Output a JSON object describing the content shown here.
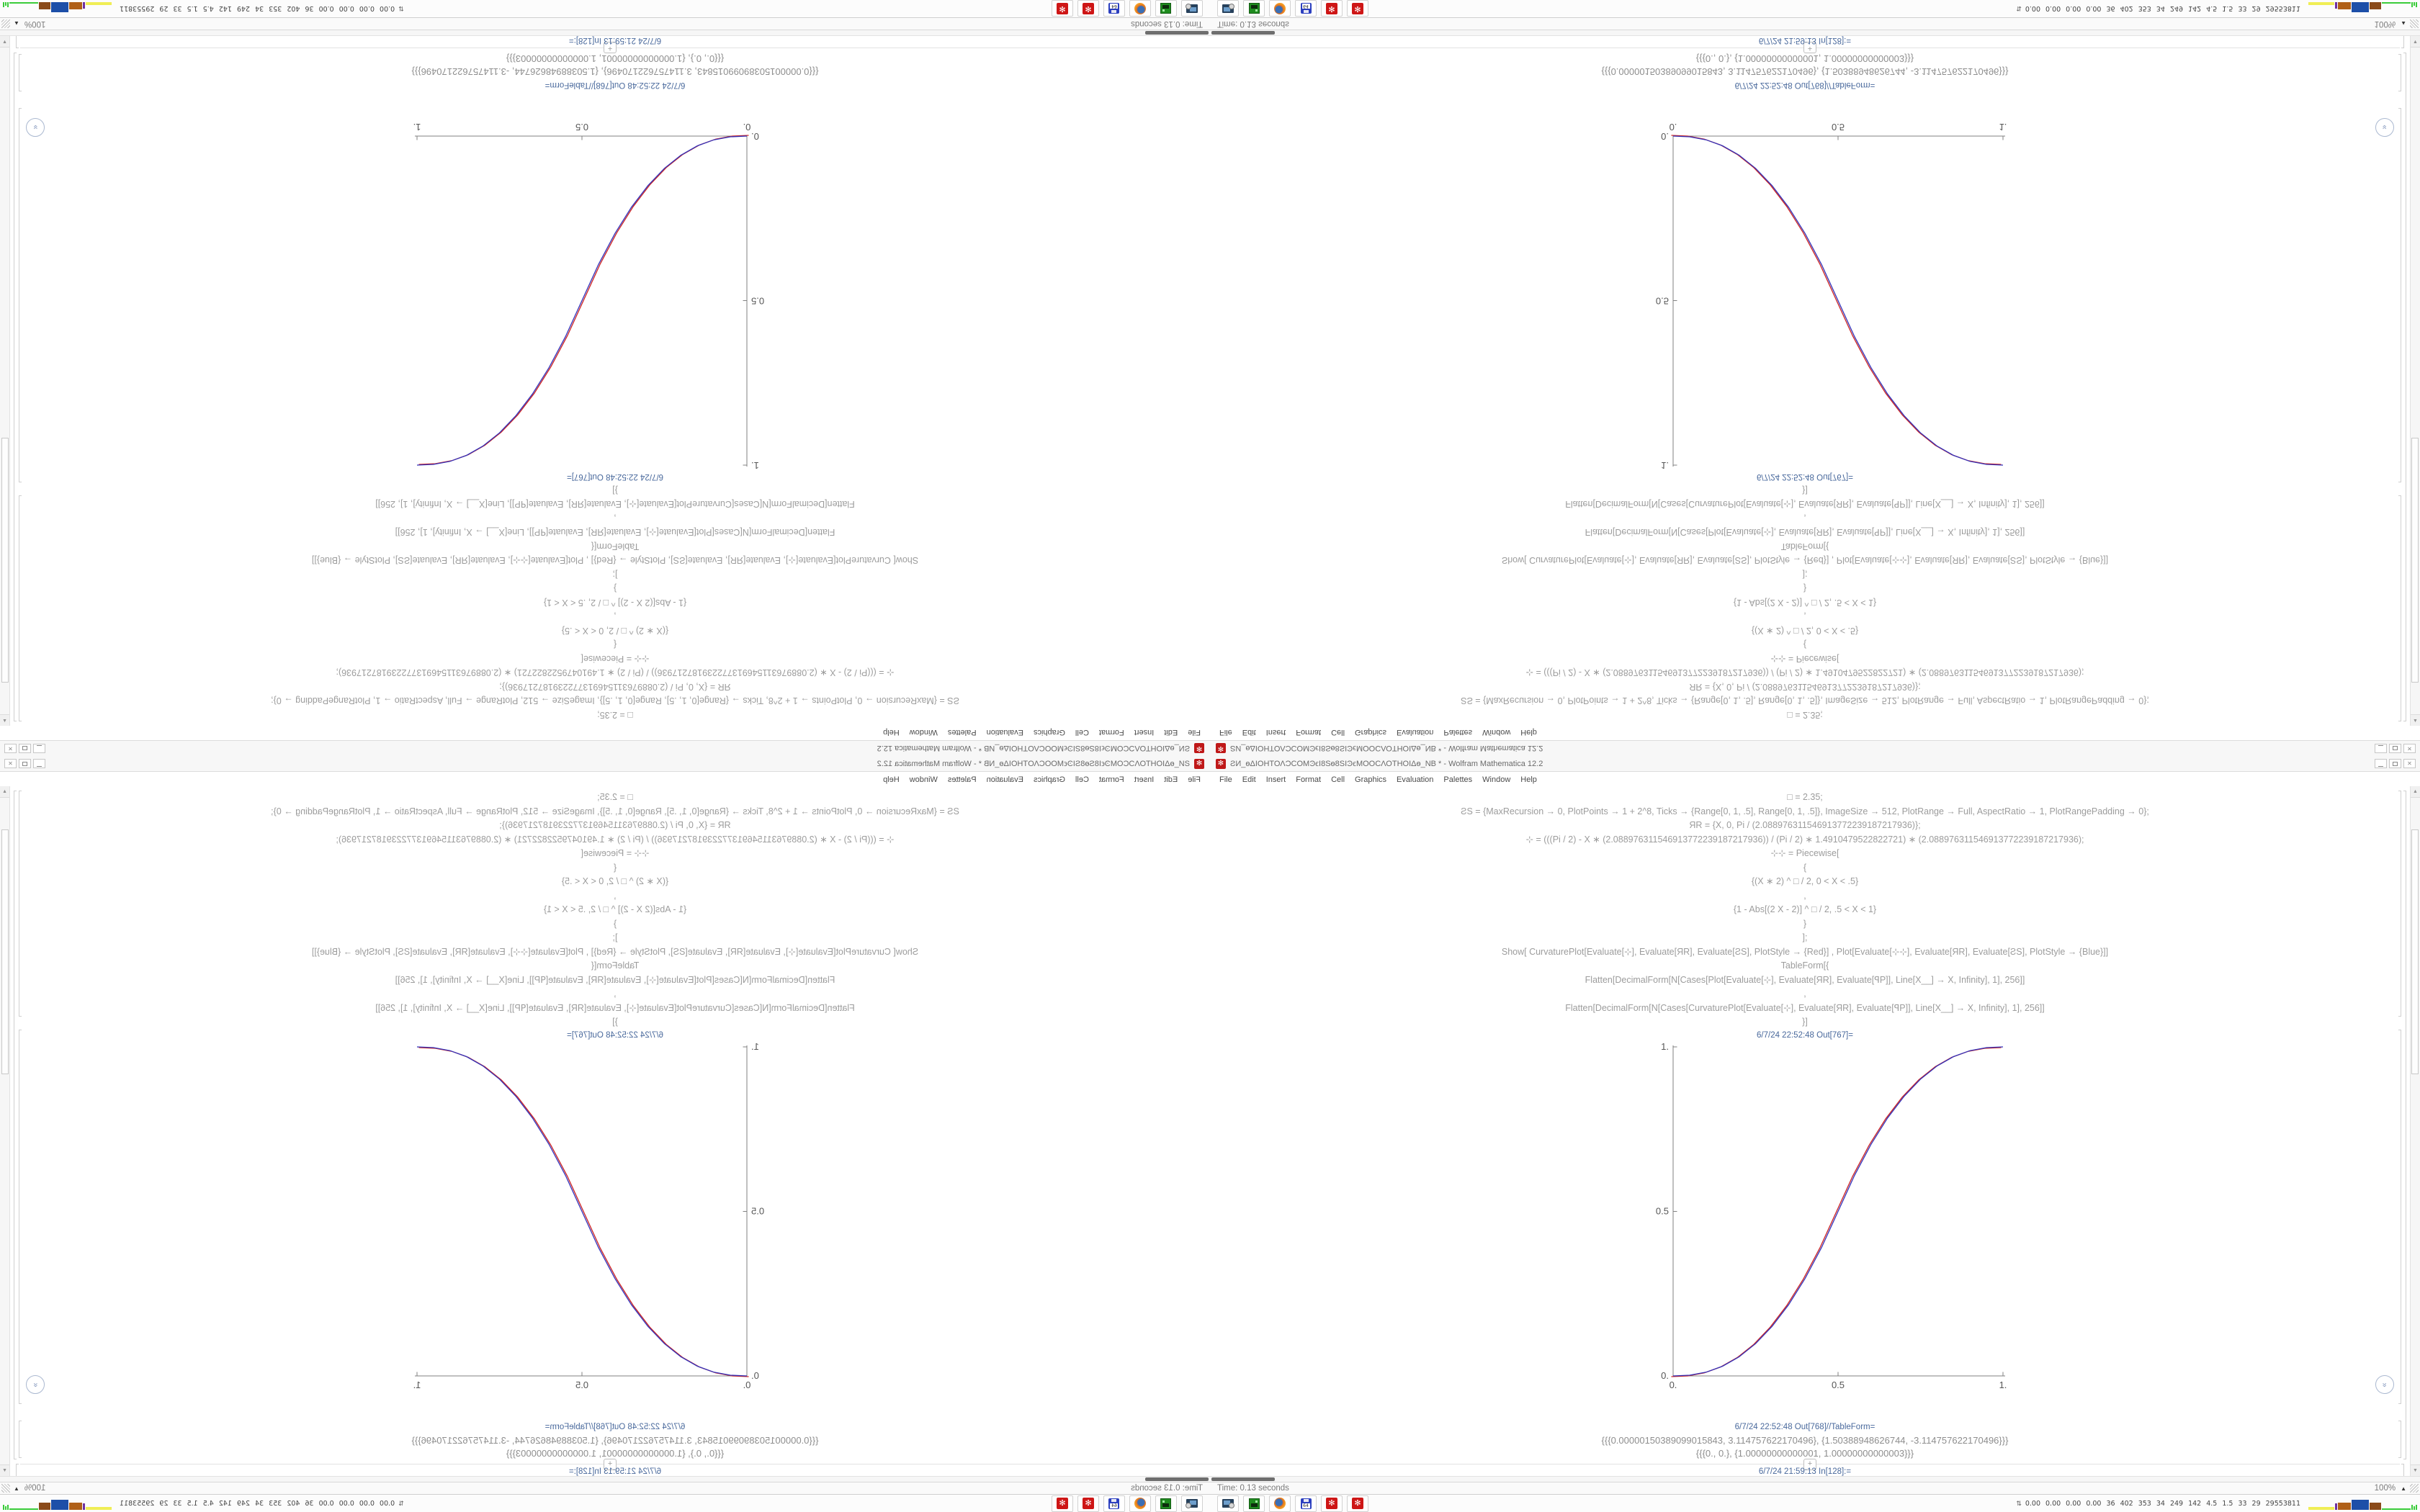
{
  "window": {
    "title": "ƧИ_ѳΔΙΟΗΤΟΛϽϹΟΜϿϵΙ8Ѕѳ8ЅΙϿϵΜΟΟϹΛΟΤΗΟΙΔѳ_NB * - Wolfram Mathematica 12.2",
    "menu": [
      "File",
      "Edit",
      "Insert",
      "Format",
      "Cell",
      "Graphics",
      "Evaluation",
      "Palettes",
      "Window",
      "Help"
    ]
  },
  "notebook": {
    "code_lines": [
      "□ = 2.35;",
      "ƧS = {MaxRecursion → 0, PlotPoints → 1 + 2^8, Ticks → {Range[0, 1, .5], Range[0, 1, .5]}, ImageSize → 512, PlotRange → Full, AspectRatio → 1, PlotRangePadding → 0};",
      "ЯR = {X, 0, Pi / (2.088976311546913772239187217936)};",
      "⊹ = (((Pi / 2) - X ∗ (2.088976311546913772239187217936)) / (Pi / 2) ∗ 1.4910479522822721) ∗ (2.088976311546913772239187217936);",
      "⊹⊹ = Piecewise[",
      "{",
      "{(X ∗ 2) ^ □ / 2, 0 < X < .5}",
      ",",
      "{1 - Abs[(2 X - 2)] ^ □ / 2, .5 < X < 1}",
      "}",
      "];",
      "Show[  CurvaturePlot[Evaluate[⊹], Evaluate[ЯR], Evaluate[ƧS], PlotStyle → {Red}]  ,  Plot[Evaluate[⊹⊹], Evaluate[ЯR], Evaluate[ƧS], PlotStyle → {Blue}]]",
      "TableForm[{",
      "Flatten[DecimalForm[N[Cases[Plot[Evaluate[⊹], Evaluate[ЯR], Evaluate[ꟼP]], Line[X__] → X, Infinity], 1], 256]]",
      ",",
      "Flatten[DecimalForm[N[Cases[CurvaturePlot[Evaluate[⊹], Evaluate[ЯR], Evaluate[ꟼP]], Line[X__] → X, Infinity], 1], 256]]",
      "}]"
    ],
    "out_plot_label": "6/7/24 22:52:48 Out[767]=",
    "out_table_label": "6/7/24 22:52:48 Out[768]//TableForm=",
    "table_rows": [
      "{{{0.00000150389099015843, 3.114757622170496}, {1.50388948626744, -3.114757622170496}}}",
      "{{{0., 0.}, {1.00000000000001, 1.00000000000003}}}"
    ],
    "in_label": "6/7/24 21:59:13 In[128]:=",
    "insert_plus": "+"
  },
  "status_bar": {
    "left": "Time: 0.13 seconds",
    "zoom": "100%"
  },
  "taskbar": {
    "icons": [
      {
        "type": "computer",
        "name": "computer-settings-icon"
      },
      {
        "type": "green",
        "name": "green-file-manager-icon"
      },
      {
        "type": "firefox",
        "name": "firefox-icon"
      },
      {
        "type": "floppy",
        "name": "disk-64-icon",
        "label": "64"
      },
      {
        "type": "mma",
        "name": "mathematica-window-1-icon"
      },
      {
        "type": "mma",
        "name": "mathematica-window-2-icon"
      }
    ],
    "tray_values": [
      "0.00",
      "0.00",
      "0.00",
      "0.00",
      "36",
      "402",
      "353",
      "34",
      "249",
      "142",
      "4.5",
      "1.5",
      "33",
      "29",
      "29553811"
    ],
    "tray_graph": [
      {
        "color": "#f0ee55",
        "w": 36,
        "h": 4
      },
      {
        "color": "#7030a0",
        "w": 3,
        "h": 9
      },
      {
        "color": "#b06018",
        "w": 18,
        "h": 10
      },
      {
        "color": "#1d4fa8",
        "w": 24,
        "h": 14
      },
      {
        "color": "#8a4a1a",
        "w": 16,
        "h": 10
      },
      {
        "color": "#3acc3a",
        "w": 40,
        "h": 2
      },
      {
        "color": "#3acc3a",
        "w": 2,
        "h": 7
      },
      {
        "color": "#3acc3a",
        "w": 2,
        "h": 5
      },
      {
        "color": "#3acc3a",
        "w": 2,
        "h": 7
      }
    ]
  },
  "icons": {
    "spikey": "✻",
    "close": "✕",
    "plus": "+",
    "scroll_up": "▲",
    "scroll_down": "▼",
    "chevron": "»",
    "caret": "▲",
    "tray": "⇅"
  },
  "colors": {
    "cell_label_blue": "#49699c",
    "code_gray": "#9c9c9c",
    "curve_red": "#cc2222",
    "curve_blue": "#3333bb",
    "axis_gray": "#808080",
    "mathematica_red": "#ce1616"
  },
  "chart_data": {
    "type": "line",
    "title": "",
    "xlabel": "",
    "ylabel": "",
    "xlim": [
      0,
      1
    ],
    "ylim": [
      0,
      1
    ],
    "grid": false,
    "legend_position": "none",
    "exponent": 2.35,
    "xticks": [
      {
        "v": 0,
        "label": "0."
      },
      {
        "v": 0.5,
        "label": "0.5"
      },
      {
        "v": 1,
        "label": "1."
      }
    ],
    "yticks": [
      {
        "v": 0,
        "label": "0."
      },
      {
        "v": 0.5,
        "label": "0.5"
      },
      {
        "v": 1,
        "label": "1."
      }
    ],
    "x": [
      0,
      0.05,
      0.1,
      0.15,
      0.2,
      0.25,
      0.3,
      0.35,
      0.4,
      0.45,
      0.5,
      0.55,
      0.6,
      0.65,
      0.7,
      0.75,
      0.8,
      0.85,
      0.9,
      0.95,
      1
    ],
    "series": [
      {
        "name": "CurvaturePlot (Red)",
        "color": "#cc2222",
        "values": [
          0,
          0.0022,
          0.0114,
          0.0295,
          0.058,
          0.098,
          0.1505,
          0.2162,
          0.296,
          0.3904,
          0.5,
          0.6096,
          0.704,
          0.7838,
          0.8495,
          0.902,
          0.942,
          0.9705,
          0.9886,
          0.9978,
          1
        ]
      },
      {
        "name": "Plot Piecewise (Blue)",
        "color": "#3333bb",
        "values": [
          0,
          0.0022,
          0.0114,
          0.0295,
          0.058,
          0.098,
          0.1505,
          0.2162,
          0.296,
          0.3904,
          0.5,
          0.6096,
          0.704,
          0.7838,
          0.8495,
          0.902,
          0.942,
          0.9705,
          0.9886,
          0.9978,
          1
        ]
      }
    ]
  }
}
